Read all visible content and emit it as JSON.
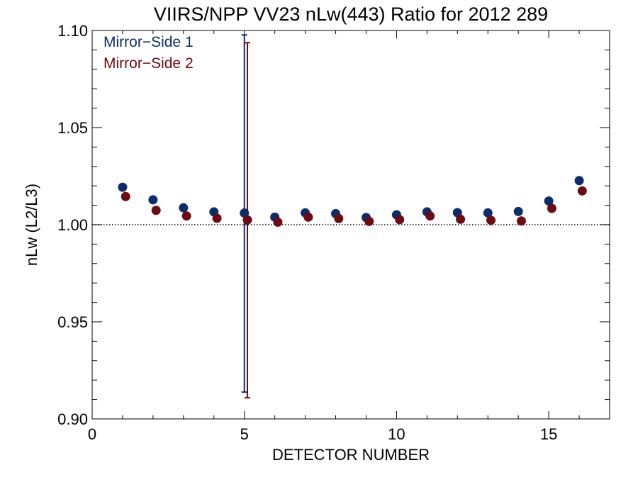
{
  "chart_data": {
    "type": "scatter",
    "title": "VIIRS/NPP VV23 nLw(443) Ratio for 2012 289",
    "xlabel": "DETECTOR NUMBER",
    "ylabel": "nLw (L2/L3)",
    "xlim": [
      0,
      17
    ],
    "ylim": [
      0.9,
      1.1
    ],
    "x_ticks": [
      0,
      5,
      10,
      15
    ],
    "x_tick_labels": [
      "0",
      "5",
      "10",
      "15"
    ],
    "y_ticks": [
      0.9,
      0.95,
      1.0,
      1.05,
      1.1
    ],
    "y_tick_labels": [
      "0.90",
      "0.95",
      "1.00",
      "1.05",
      "1.10"
    ],
    "reference_line": {
      "y": 1.0,
      "style": "dotted"
    },
    "legend_position": "top-left",
    "series": [
      {
        "name": "Mirror−Side 1",
        "color": "#0b2d6b",
        "x": [
          1,
          2,
          3,
          4,
          5,
          6,
          7,
          8,
          9,
          10,
          11,
          12,
          13,
          14,
          15,
          16
        ],
        "y": [
          1.0193,
          1.0128,
          1.0087,
          1.0066,
          1.006,
          1.0039,
          1.0061,
          1.0057,
          1.0037,
          1.0051,
          1.0066,
          1.0062,
          1.0061,
          1.0068,
          1.0122,
          1.0227
        ],
        "error_bar": {
          "x": 5,
          "low": 0.9138,
          "high": 1.0977
        }
      },
      {
        "name": "Mirror−Side 2",
        "color": "#6e0a14",
        "x": [
          1.1,
          2.1,
          3.1,
          4.1,
          5.1,
          6.1,
          7.1,
          8.1,
          9.1,
          10.1,
          11.1,
          12.1,
          13.1,
          14.1,
          15.1,
          16.1
        ],
        "y": [
          1.0145,
          1.0074,
          1.0045,
          1.0033,
          1.0025,
          1.0013,
          1.0039,
          1.0032,
          1.0017,
          1.0026,
          1.0045,
          1.0028,
          1.0023,
          1.0019,
          1.0084,
          1.0174
        ],
        "error_bar": {
          "x": 5.1,
          "low": 0.9109,
          "high": 1.0937
        }
      }
    ]
  }
}
